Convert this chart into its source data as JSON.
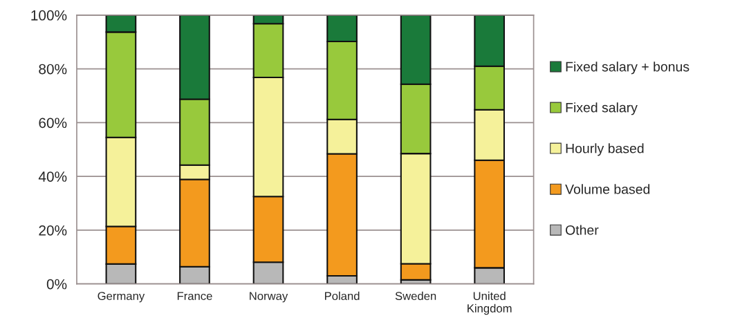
{
  "chart_data": {
    "type": "bar",
    "stacked": true,
    "categories": [
      "Germany",
      "France",
      "Norway",
      "Poland",
      "Sweden",
      "United\nKingdom"
    ],
    "series": [
      {
        "name": "Other",
        "color": "#b8b8b8",
        "values": [
          7.4,
          6.4,
          8.1,
          3.0,
          1.5,
          6.0
        ]
      },
      {
        "name": "Volume based",
        "color": "#f39a1e",
        "values": [
          14.0,
          32.5,
          24.4,
          45.4,
          6.0,
          40.0
        ]
      },
      {
        "name": "Hourly based",
        "color": "#f5f19a",
        "values": [
          33.1,
          5.3,
          44.3,
          12.8,
          41.0,
          18.8
        ]
      },
      {
        "name": "Fixed salary",
        "color": "#98c93c",
        "values": [
          39.2,
          24.5,
          20.0,
          29.0,
          25.8,
          16.2
        ]
      },
      {
        "name": "Fixed salary + bonus",
        "color": "#1a7a3a",
        "values": [
          6.3,
          31.3,
          3.2,
          9.8,
          25.7,
          19.0
        ]
      }
    ],
    "ylim": [
      0,
      100
    ],
    "yticks": [
      {
        "value": 0,
        "label": "0%"
      },
      {
        "value": 20,
        "label": "20%"
      },
      {
        "value": 40,
        "label": "40%"
      },
      {
        "value": 60,
        "label": "60%"
      },
      {
        "value": 80,
        "label": "80%"
      },
      {
        "value": 100,
        "label": "100%"
      }
    ],
    "grid": "y",
    "legend": "right"
  }
}
